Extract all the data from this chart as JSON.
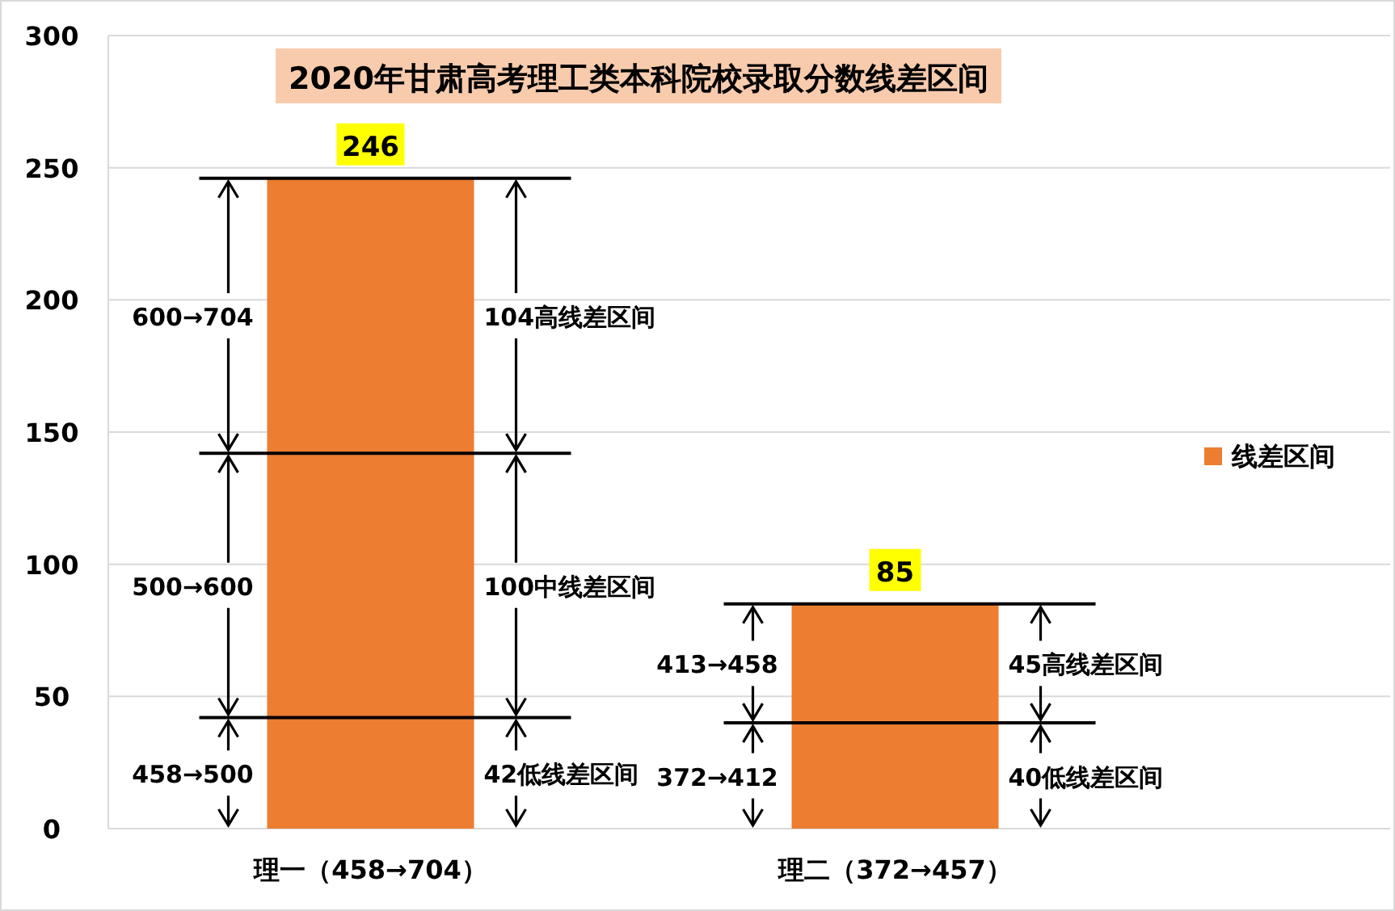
{
  "chart_data": {
    "type": "bar",
    "stacked": true,
    "title": "2020年甘肃高考理工类本科院校录取分数线差区间",
    "categories": [
      "理一（458→704）",
      "理二（372→457）"
    ],
    "series": [
      {
        "name": "线差区间",
        "color": "#ed7d31",
        "values": [
          42,
          40
        ]
      },
      {
        "color": "#ed7d31",
        "values": [
          100,
          45
        ]
      },
      {
        "color": "#ed7d31",
        "values": [
          104,
          null
        ]
      }
    ],
    "totals": [
      "246",
      "85"
    ],
    "ylim": [
      0,
      300
    ],
    "yticks": [
      0,
      50,
      100,
      150,
      200,
      250,
      300
    ],
    "grid": "y",
    "legend": "right",
    "annotations": [
      "600→704",
      "500→600",
      "458→500",
      "104高线差区间",
      "100中线差区间",
      "42低线差区间",
      "413→458",
      "372→412",
      "45高线差区间",
      "40低线差区间"
    ]
  }
}
